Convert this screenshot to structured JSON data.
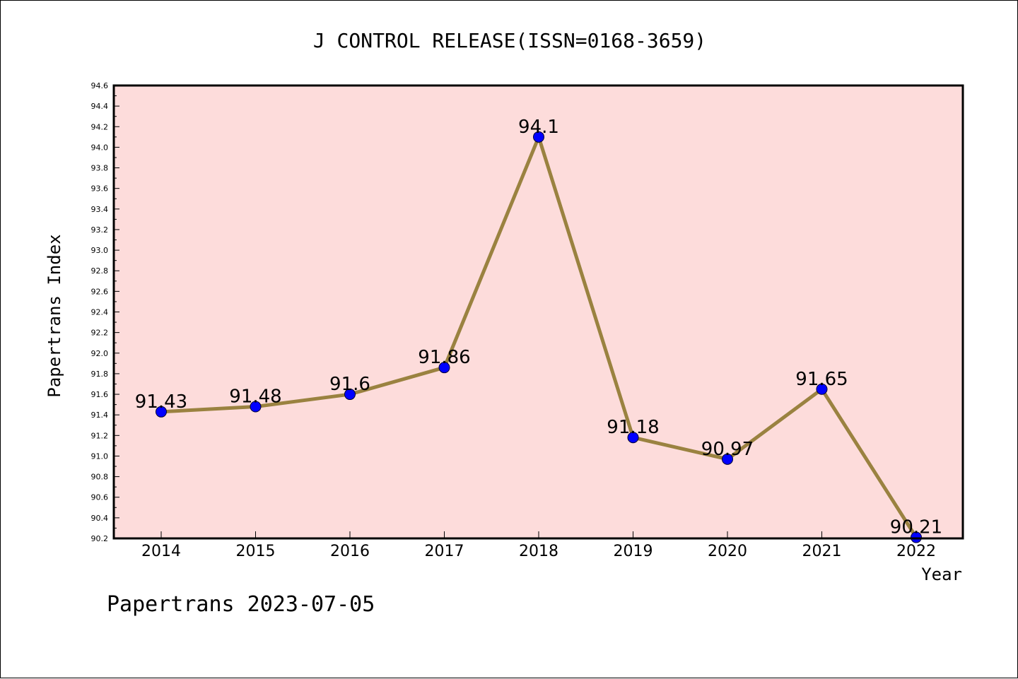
{
  "chart_data": {
    "type": "line",
    "title": "J CONTROL RELEASE(ISSN=0168-3659)",
    "xlabel": "Year",
    "ylabel": "Papertrans Index",
    "categories": [
      "2014",
      "2015",
      "2016",
      "2017",
      "2018",
      "2019",
      "2020",
      "2021",
      "2022"
    ],
    "series": [
      {
        "values": [
          91.43,
          91.48,
          91.6,
          91.86,
          94.1,
          91.18,
          90.97,
          91.65,
          90.21
        ],
        "labels": [
          "91.43",
          "91.48",
          "91.6",
          "91.86",
          "94.1",
          "91.18",
          "90.97",
          "91.65",
          "90.21"
        ],
        "line_color": "#9a8240",
        "marker_color": "#0000ff"
      }
    ],
    "ylim": [
      90.2,
      94.6
    ],
    "yticks": [
      "90.2",
      "90.4",
      "90.6",
      "90.8",
      "91.0",
      "91.2",
      "91.4",
      "91.6",
      "91.8",
      "92.0",
      "92.2",
      "92.4",
      "92.6",
      "92.8",
      "93.0",
      "93.2",
      "93.4",
      "93.6",
      "93.8",
      "94.0",
      "94.2",
      "94.4",
      "94.6"
    ],
    "plot_background": "#fddcdb",
    "grid": false,
    "legend": "none"
  },
  "footer": "Papertrans 2023-07-05"
}
